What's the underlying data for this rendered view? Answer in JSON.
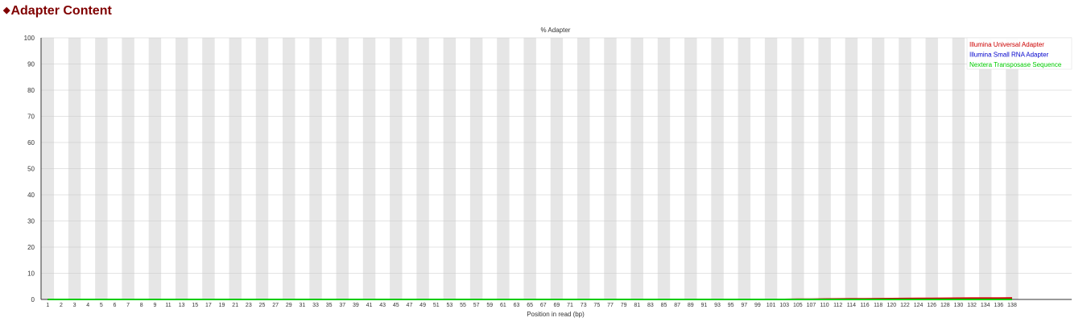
{
  "page": {
    "title": "Adapter Content",
    "title_marker": "◆"
  },
  "chart_data": {
    "type": "line",
    "title": "% Adapter",
    "xlabel": "Position in read (bp)",
    "ylabel": "",
    "ylim": [
      0,
      100
    ],
    "yticks": [
      0,
      10,
      20,
      30,
      40,
      50,
      60,
      70,
      80,
      90,
      100
    ],
    "grid": true,
    "legend_position": "top-right",
    "categories": [
      "1",
      "2",
      "3",
      "4",
      "5",
      "6",
      "7",
      "8",
      "9",
      "11",
      "13",
      "15",
      "17",
      "19",
      "21",
      "23",
      "25",
      "27",
      "29",
      "31",
      "33",
      "35",
      "37",
      "39",
      "41",
      "43",
      "45",
      "47",
      "49",
      "51",
      "53",
      "55",
      "57",
      "59",
      "61",
      "63",
      "65",
      "67",
      "69",
      "71",
      "73",
      "75",
      "77",
      "79",
      "81",
      "83",
      "85",
      "87",
      "89",
      "91",
      "93",
      "95",
      "97",
      "99",
      "101",
      "103",
      "105",
      "107",
      "110",
      "112",
      "114",
      "116",
      "118",
      "120",
      "122",
      "124",
      "126",
      "128",
      "130",
      "132",
      "134",
      "136",
      "138"
    ],
    "series": [
      {
        "name": "Illumina Universal Adapter",
        "color": "#cc0000",
        "values": [
          0,
          0,
          0,
          0,
          0,
          0,
          0,
          0,
          0,
          0,
          0,
          0,
          0,
          0,
          0,
          0,
          0,
          0,
          0,
          0,
          0,
          0,
          0,
          0,
          0,
          0,
          0,
          0,
          0,
          0,
          0,
          0,
          0,
          0,
          0,
          0,
          0,
          0,
          0,
          0,
          0,
          0,
          0,
          0,
          0,
          0,
          0,
          0,
          0,
          0,
          0,
          0,
          0,
          0,
          0,
          0,
          0.05,
          0.1,
          0.15,
          0.2,
          0.22,
          0.25,
          0.28,
          0.32,
          0.35,
          0.38,
          0.4,
          0.42,
          0.45,
          0.48,
          0.5,
          0.5,
          0.52
        ]
      },
      {
        "name": "Illumina Small RNA Adapter",
        "color": "#0000cc",
        "values": [
          0,
          0,
          0,
          0,
          0,
          0,
          0,
          0,
          0,
          0,
          0,
          0,
          0,
          0,
          0,
          0,
          0,
          0,
          0,
          0,
          0,
          0,
          0,
          0,
          0,
          0,
          0,
          0,
          0,
          0,
          0,
          0,
          0,
          0,
          0,
          0,
          0,
          0,
          0,
          0,
          0,
          0,
          0,
          0,
          0,
          0,
          0,
          0,
          0,
          0,
          0,
          0,
          0,
          0,
          0,
          0,
          0,
          0,
          0,
          0,
          0,
          0,
          0,
          0,
          0,
          0,
          0,
          0,
          0,
          0,
          0,
          0,
          0
        ]
      },
      {
        "name": "Nextera Transposase Sequence",
        "color": "#00cc00",
        "values": [
          0,
          0,
          0,
          0,
          0,
          0,
          0,
          0,
          0,
          0,
          0,
          0,
          0,
          0,
          0,
          0,
          0,
          0,
          0,
          0,
          0,
          0,
          0,
          0,
          0,
          0,
          0,
          0,
          0,
          0,
          0,
          0,
          0,
          0,
          0,
          0,
          0,
          0,
          0,
          0,
          0,
          0,
          0,
          0,
          0,
          0,
          0,
          0,
          0,
          0,
          0,
          0,
          0,
          0,
          0,
          0,
          0,
          0,
          0,
          0,
          0,
          0,
          0,
          0,
          0,
          0,
          0,
          0,
          0,
          0,
          0,
          0,
          0
        ]
      }
    ]
  }
}
